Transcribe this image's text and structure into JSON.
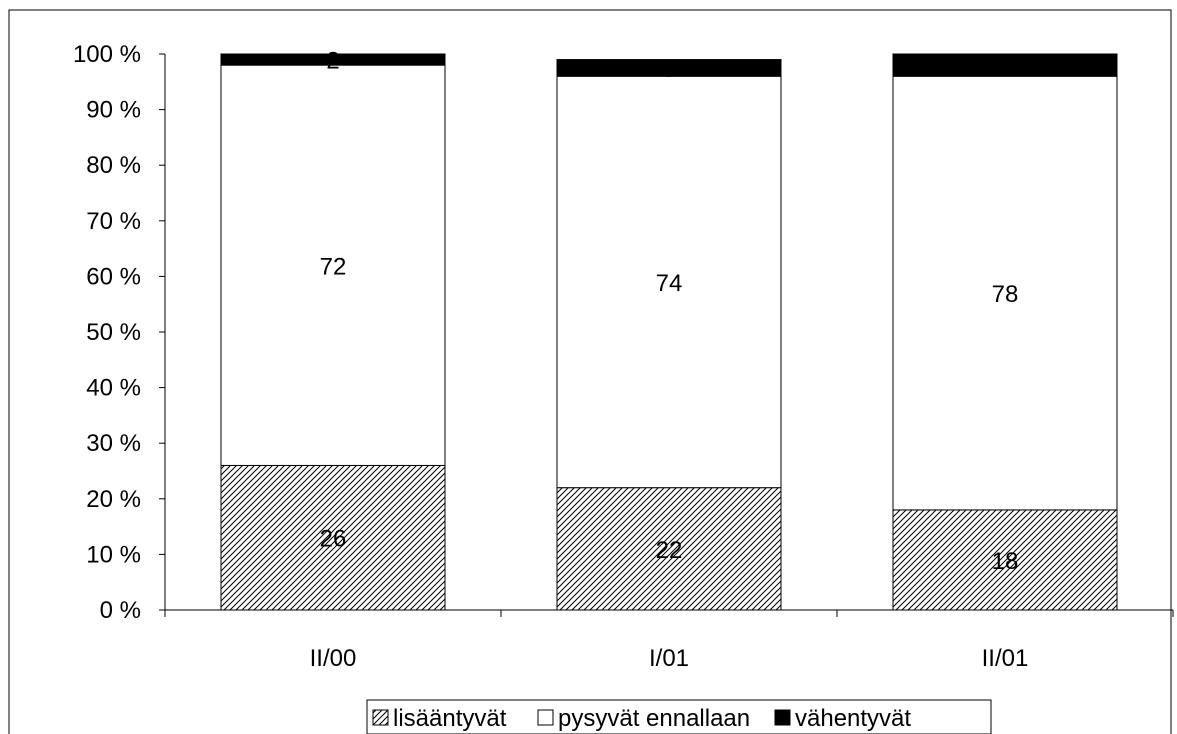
{
  "chart_data": {
    "type": "bar",
    "stacked": true,
    "categories": [
      "II/00",
      "I/01",
      "II/01"
    ],
    "series": [
      {
        "name": "lisääntyvät",
        "values": [
          26,
          22,
          18
        ],
        "fill": "hatch",
        "color": "#000000"
      },
      {
        "name": "pysyvät ennallaan",
        "values": [
          72,
          74,
          78
        ],
        "fill": "solid",
        "color": "#ffffff"
      },
      {
        "name": "vähentyvät",
        "values": [
          2,
          3,
          4
        ],
        "fill": "solid",
        "color": "#000000"
      }
    ],
    "data_labels": [
      [
        "26",
        "72",
        "2"
      ],
      [
        "22",
        "74",
        "3"
      ],
      [
        "18",
        "78",
        "4"
      ]
    ],
    "ylim": [
      0,
      100
    ],
    "yticks": [
      "0 %",
      "10 %",
      "20 %",
      "30 %",
      "40 %",
      "50 %",
      "60 %",
      "70 %",
      "80 %",
      "90 %",
      "100 %"
    ],
    "grid": false,
    "legend_position": "bottom"
  }
}
